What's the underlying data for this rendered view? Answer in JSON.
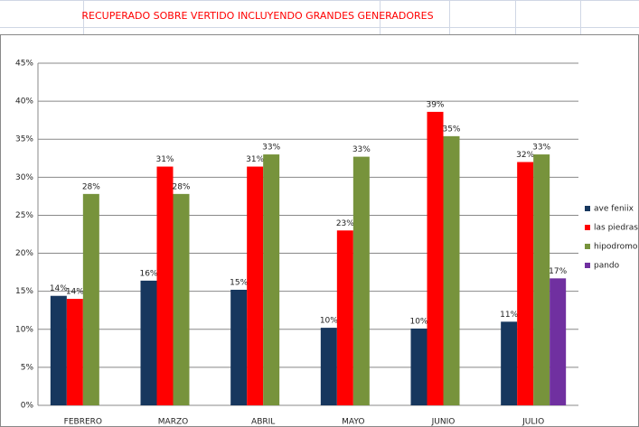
{
  "chart_data": {
    "type": "bar",
    "title": "RECUPERADO SOBRE VERTIDO INCLUYENDO GRANDES GENERADORES",
    "categories": [
      "FEBRERO",
      "MARZO",
      "ABRIL",
      "MAYO",
      "JUNIO",
      "JULIO"
    ],
    "series": [
      {
        "name": "ave feniix",
        "color": "#17375e",
        "values": [
          14.4,
          16.4,
          15.2,
          10.2,
          10.1,
          11
        ],
        "value_labels": [
          "14%",
          "16%",
          "15%",
          "10%",
          "10%",
          "11%"
        ]
      },
      {
        "name": "las piedras",
        "color": "#ff0000",
        "values": [
          14,
          31.4,
          31.4,
          23,
          38.6,
          32
        ],
        "value_labels": [
          "14%",
          "31%",
          "31%",
          "23%",
          "39%",
          "32%"
        ]
      },
      {
        "name": "hipodromo",
        "color": "#77933c",
        "values": [
          27.8,
          27.8,
          33,
          32.7,
          35.4,
          33
        ],
        "value_labels": [
          "28%",
          "28%",
          "33%",
          "33%",
          "35%",
          "33%"
        ]
      },
      {
        "name": "pando",
        "color": "#7030a0",
        "values": [
          null,
          null,
          null,
          null,
          null,
          16.7
        ],
        "value_labels": [
          null,
          null,
          null,
          null,
          null,
          "17%"
        ]
      }
    ],
    "ylim": [
      0,
      45
    ],
    "yticks": [
      {
        "value": 0,
        "label": "0%"
      },
      {
        "value": 5,
        "label": "5%"
      },
      {
        "value": 10,
        "label": "10%"
      },
      {
        "value": 15,
        "label": "15%"
      },
      {
        "value": 20,
        "label": "20%"
      },
      {
        "value": 25,
        "label": "25%"
      },
      {
        "value": 30,
        "label": "30%"
      },
      {
        "value": 35,
        "label": "35%"
      },
      {
        "value": 40,
        "label": "40%"
      },
      {
        "value": 45,
        "label": "45%"
      }
    ],
    "grid": true,
    "legend": "right"
  }
}
